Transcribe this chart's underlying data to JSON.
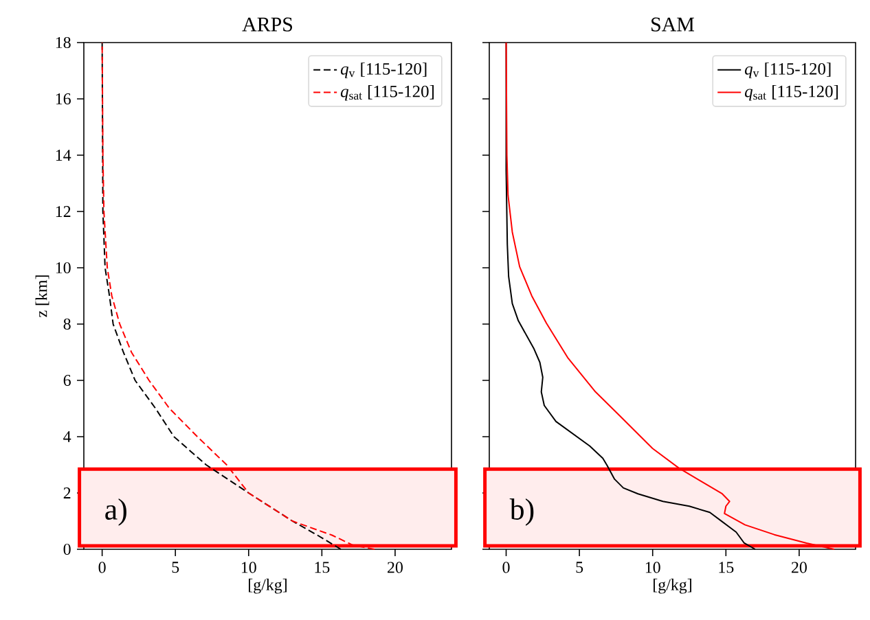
{
  "chart_data": [
    {
      "type": "line",
      "title": "ARPS",
      "xlabel": "[g/kg]",
      "ylabel": "z [km]",
      "xlim": [
        -1.25,
        23.85
      ],
      "ylim": [
        0,
        18
      ],
      "xticks": [
        0,
        5,
        10,
        15,
        20
      ],
      "yticks": [
        0,
        2,
        4,
        6,
        8,
        10,
        12,
        14,
        16,
        18
      ],
      "legend": "top right",
      "line_style": "dashed",
      "marker": "none",
      "annotations": [
        "a)"
      ],
      "bands": [
        {
          "axis": "y",
          "from": 0.12,
          "to": 2.85,
          "color": "#ff0000"
        }
      ],
      "series": [
        {
          "name": "*q*$_{v}$ [115-120]",
          "color": "#000000",
          "x": [
            16.3,
            14.7,
            13.0,
            10.0,
            7.1,
            4.9,
            3.65,
            2.25,
            1.45,
            0.75,
            0.5,
            0.2,
            0.05,
            0
          ],
          "values": [
            0,
            0.5,
            1,
            2,
            3,
            4,
            5,
            6,
            7,
            8,
            9,
            10,
            12,
            18
          ]
        },
        {
          "name": "*q*$_{sat}$ [115-120]",
          "color": "#ff0000",
          "x": [
            18.6,
            17.1,
            15.7,
            13.0,
            10.0,
            8.5,
            6.5,
            4.6,
            3.2,
            2.0,
            1.2,
            0.66,
            0.35,
            0.12,
            0.05,
            0
          ],
          "values": [
            0,
            0.15,
            0.5,
            1,
            2,
            3,
            4,
            5,
            6,
            7,
            8,
            9,
            10,
            12,
            14,
            18
          ]
        }
      ]
    },
    {
      "type": "line",
      "title": "SAM",
      "xlabel": "[g/kg]",
      "xlim": [
        -1.15,
        23.85
      ],
      "ylim": [
        0,
        18
      ],
      "xticks": [
        0,
        5,
        10,
        15,
        20
      ],
      "yticks": [
        0,
        2,
        4,
        6,
        8,
        10,
        12,
        14,
        16,
        18
      ],
      "tick_labels": "x",
      "legend": "top right",
      "line_style": "solid",
      "marker": "none",
      "annotations": [
        "b)"
      ],
      "bands": [
        {
          "axis": "y",
          "from": 0.12,
          "to": 2.85,
          "color": "#ff0000"
        }
      ],
      "series": [
        {
          "name": "*q*$_{v}$ [115-120]",
          "color": "#000000",
          "x": [
            17.0,
            16.25,
            15.7,
            14.8,
            13.9,
            12.5,
            10.7,
            9.0,
            8.0,
            7.4,
            6.9,
            6.6,
            5.7,
            3.4,
            2.6,
            2.4,
            2.5,
            2.3,
            1.9,
            0.83,
            0.42,
            0.17,
            0.08,
            0,
            0
          ],
          "values": [
            0,
            0.22,
            0.61,
            0.96,
            1.31,
            1.53,
            1.7,
            1.97,
            2.18,
            2.49,
            2.97,
            3.23,
            3.67,
            4.54,
            5.11,
            5.59,
            6.11,
            6.64,
            7.12,
            8.12,
            8.73,
            9.69,
            10.83,
            13.45,
            18
          ]
        },
        {
          "name": "*q*$_{sat}$ [115-120]",
          "color": "#ff0000",
          "x": [
            22.4,
            20.5,
            18.3,
            16.3,
            14.9,
            15.0,
            15.25,
            14.75,
            13.2,
            11.8,
            10.0,
            7.8,
            6.1,
            4.2,
            2.75,
            1.75,
            0.92,
            0.42,
            0.13,
            0.05,
            0
          ],
          "values": [
            0,
            0.22,
            0.52,
            0.87,
            1.27,
            1.53,
            1.7,
            1.97,
            2.45,
            2.88,
            3.58,
            4.72,
            5.59,
            6.81,
            8.03,
            9.0,
            10.04,
            11.27,
            12.58,
            14,
            18
          ]
        }
      ]
    }
  ]
}
